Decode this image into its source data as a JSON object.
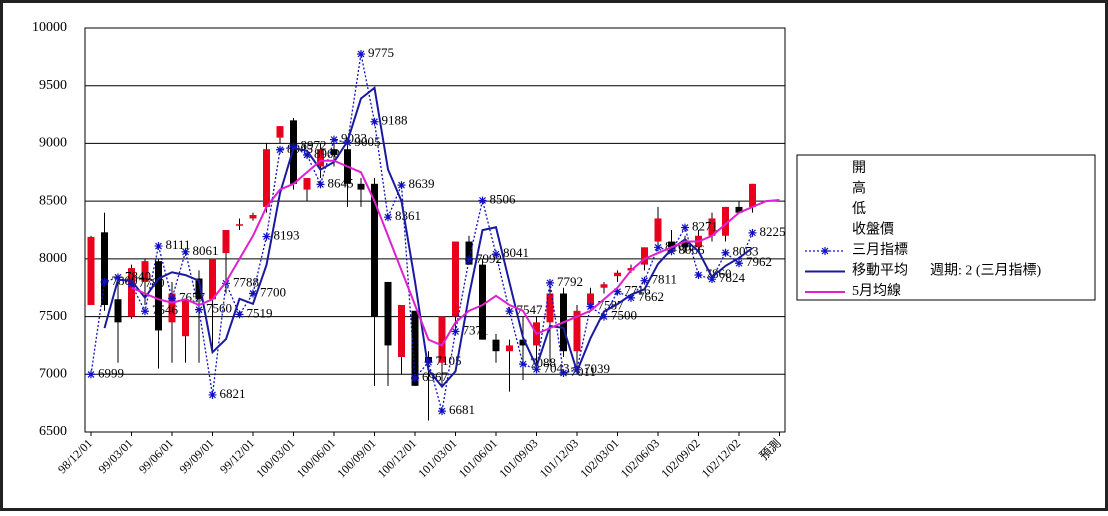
{
  "chart_data": {
    "type": "candlestick",
    "categories": [
      "98/12/01",
      null,
      null,
      "99/03/01",
      null,
      null,
      "99/06/01",
      null,
      null,
      "99/09/01",
      null,
      null,
      "99/12/01",
      null,
      null,
      "100/03/01",
      null,
      null,
      "100/06/01",
      null,
      null,
      "100/09/01",
      null,
      null,
      "100/12/01",
      null,
      null,
      "101/03/01",
      null,
      null,
      "101/06/01",
      null,
      null,
      "101/09/03",
      null,
      null,
      "101/12/03",
      null,
      null,
      "102/03/01",
      null,
      null,
      "102/06/03",
      null,
      null,
      "102/09/02",
      null,
      null,
      "102/12/02",
      null,
      null,
      "預測"
    ],
    "open": [
      7600,
      8230,
      7650,
      7500,
      7800,
      7980,
      7450,
      7330,
      7830,
      7650,
      8050,
      8300,
      8350,
      8450,
      9050,
      9200,
      8600,
      8800,
      8950,
      8950,
      8650,
      8650,
      7800,
      7150,
      7550,
      7150,
      7100,
      7500,
      8150,
      7950,
      7300,
      7200,
      7300,
      7250,
      7450,
      7700,
      7200,
      7600,
      7750,
      7850,
      7900,
      7950,
      8150,
      8150,
      8150,
      8100,
      8200,
      8200,
      8450,
      8450,
      null,
      null
    ],
    "high": [
      8200,
      8400,
      7800,
      7950,
      8000,
      8000,
      7800,
      7650,
      7900,
      8000,
      8250,
      8350,
      8400,
      9000,
      9150,
      9220,
      8700,
      9000,
      9000,
      9050,
      8700,
      8700,
      7800,
      7600,
      7550,
      7200,
      7500,
      8150,
      8200,
      8000,
      7350,
      7300,
      7500,
      7500,
      7750,
      7750,
      7600,
      7750,
      7800,
      7900,
      7950,
      8100,
      8450,
      8250,
      8200,
      8250,
      8400,
      8450,
      8500,
      8650,
      null,
      null
    ],
    "low": [
      7600,
      7550,
      7100,
      7480,
      7600,
      7050,
      7100,
      7100,
      7100,
      7200,
      7700,
      8250,
      8330,
      8400,
      9000,
      8600,
      8500,
      8700,
      8800,
      8450,
      8450,
      6900,
      6900,
      7000,
      6900,
      6600,
      6900,
      7400,
      7950,
      7300,
      7100,
      6850,
      6950,
      7050,
      7100,
      7150,
      7000,
      7550,
      7700,
      7800,
      7880,
      7900,
      8100,
      8050,
      8050,
      8050,
      8150,
      8150,
      8400,
      8400,
      null,
      null
    ],
    "close": [
      8190,
      7600,
      7450,
      7920,
      7980,
      7380,
      7700,
      7650,
      7650,
      8000,
      8250,
      8300,
      8380,
      8950,
      9150,
      8650,
      8700,
      8950,
      8900,
      8650,
      8600,
      7500,
      7250,
      7600,
      6900,
      7100,
      7500,
      8150,
      7950,
      7300,
      7200,
      7250,
      7250,
      7450,
      7700,
      7200,
      7550,
      7700,
      7780,
      7880,
      7920,
      8100,
      8350,
      8100,
      8100,
      8200,
      8350,
      8450,
      8400,
      8650,
      null,
      null
    ],
    "up_color": "#e8001c",
    "down_color": "#000000",
    "ylim": [
      6500,
      10000
    ],
    "yticks": [
      6500,
      7000,
      7500,
      8000,
      8500,
      9000,
      9500,
      10000
    ],
    "grid": true,
    "legend_position": "right",
    "ohlc_names": [
      "開",
      "高",
      "低",
      "收盤價"
    ],
    "annotation": "週期: 2 (三月指標)",
    "series": [
      {
        "name": "三月指標",
        "color": "#1010c0",
        "style": "dotted",
        "marker": "asterisk",
        "labels": true,
        "values": [
          6999,
          7800,
          7840,
          7780,
          7546,
          8111,
          7657,
          8061,
          7560,
          6821,
          7788,
          7519,
          7700,
          8193,
          8945,
          8972,
          8900,
          8645,
          9033,
          9005,
          9775,
          9188,
          8361,
          8639,
          6967,
          7105,
          6681,
          7371,
          7992,
          8506,
          8041,
          7547,
          7088,
          7043,
          7792,
          7011,
          7039,
          7587,
          7500,
          7716,
          7662,
          7811,
          8100,
          8066,
          8271,
          7860,
          7824,
          8053,
          7962,
          8225,
          null,
          null
        ]
      },
      {
        "name": "移動平均",
        "color": "#1a1aa0",
        "style": "solid",
        "marker": "none",
        "labels": false,
        "values": [
          null,
          7400,
          7820,
          7810,
          7663,
          7829,
          7884,
          7859,
          7811,
          7191,
          7305,
          7654,
          7610,
          7947,
          8569,
          8959,
          8936,
          8773,
          8839,
          9019,
          9390,
          9482,
          8775,
          8500,
          7803,
          7036,
          6893,
          7026,
          7682,
          8249,
          8274,
          7794,
          7318,
          7066,
          7418,
          7402,
          7025,
          7313,
          7544,
          7608,
          7689,
          7737,
          7956,
          8083,
          8169,
          8066,
          7842,
          7939,
          8008,
          8094,
          null,
          null
        ]
      },
      {
        "name": "5月均線",
        "color": "#e020d0",
        "style": "solid",
        "marker": "none",
        "labels": false,
        "values": [
          null,
          null,
          null,
          7750,
          7700,
          7650,
          7620,
          7650,
          7600,
          7650,
          7800,
          8000,
          8200,
          8450,
          8600,
          8650,
          8750,
          8850,
          8850,
          8800,
          8750,
          8500,
          8200,
          7900,
          7600,
          7300,
          7250,
          7450,
          7550,
          7600,
          7680,
          7600,
          7550,
          7350,
          7400,
          7450,
          7500,
          7550,
          7650,
          7750,
          7900,
          8000,
          8050,
          8100,
          8150,
          8150,
          8200,
          8300,
          8400,
          8450,
          8500,
          8510
        ]
      }
    ]
  }
}
